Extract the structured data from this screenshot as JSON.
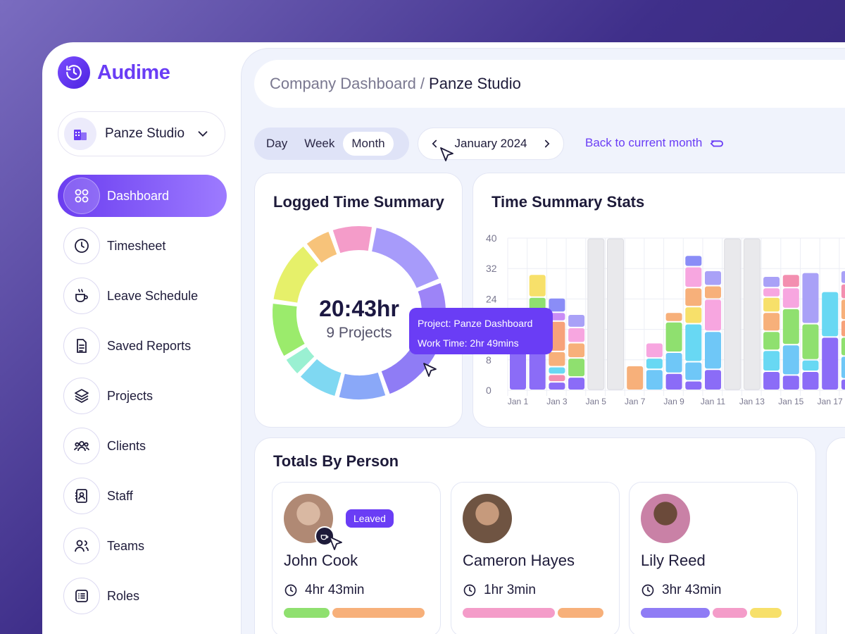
{
  "app": {
    "name": "Audime"
  },
  "org": {
    "name": "Panze Studio"
  },
  "nav": {
    "items": [
      {
        "label": "Dashboard",
        "icon": "grid-icon",
        "active": true
      },
      {
        "label": "Timesheet",
        "icon": "clock-icon"
      },
      {
        "label": "Leave Schedule",
        "icon": "coffee-icon"
      },
      {
        "label": "Saved Reports",
        "icon": "document-icon"
      },
      {
        "label": "Projects",
        "icon": "layers-icon"
      },
      {
        "label": "Clients",
        "icon": "users-icon"
      },
      {
        "label": "Staff",
        "icon": "contact-book-icon"
      },
      {
        "label": "Teams",
        "icon": "team-icon"
      },
      {
        "label": "Roles",
        "icon": "list-icon"
      }
    ]
  },
  "breadcrumb": {
    "parent": "Company Dashboard",
    "separator": "/",
    "current": "Panze Studio"
  },
  "range": {
    "tabs": [
      "Day",
      "Week",
      "Month"
    ],
    "selected": "Month"
  },
  "month_nav": {
    "label": "January 2024"
  },
  "back_link": {
    "label": "Back to current month"
  },
  "logged": {
    "title": "Logged Time Summary",
    "total": "20:43hr",
    "subtitle": "9 Projects",
    "tooltip": {
      "project": "Project: Panze Dashboard",
      "work_time": "Work Time: 2hr 49mins"
    }
  },
  "stats": {
    "title": "Time Summary Stats"
  },
  "chart_data": {
    "type": "bar",
    "stacked": true,
    "title": "Time Summary Stats",
    "y_ticks": [
      0,
      8,
      24,
      32,
      40
    ],
    "ylim": [
      0,
      40
    ],
    "x_labels": [
      "Jan 1",
      "Jan 3",
      "Jan 5",
      "Jan 7",
      "Jan 9",
      "Jan 11",
      "Jan 13",
      "Jan 15",
      "Jan 17"
    ],
    "grid": true,
    "categories": [
      "Jan 1",
      "Jan 2",
      "Jan 3",
      "Jan 4",
      "Jan 5",
      "Jan 6",
      "Jan 7",
      "Jan 8",
      "Jan 9",
      "Jan 10",
      "Jan 11",
      "Jan 12",
      "Jan 13",
      "Jan 14",
      "Jan 15",
      "Jan 16",
      "Jan 17",
      "Jan 18"
    ],
    "bars": [
      {
        "segments": [
          {
            "value": 11,
            "color": "#8b6cf7"
          },
          {
            "value": 6,
            "color": "#64d6f2"
          },
          {
            "value": 4.5,
            "color": "#6fc7f7"
          }
        ]
      },
      {
        "segments": [
          {
            "value": 13.5,
            "color": "#8b6cf7"
          },
          {
            "value": 5.5,
            "color": "#f7a6e0"
          },
          {
            "value": 5.5,
            "color": "#8fe06f"
          },
          {
            "value": 6,
            "color": "#f7e06a"
          }
        ]
      },
      {
        "segments": [
          {
            "value": 2.2,
            "color": "#8b6cf7"
          },
          {
            "value": 2,
            "color": "#f38fb0"
          },
          {
            "value": 2,
            "color": "#68d8f3"
          },
          {
            "value": 4,
            "color": "#f7b07a"
          },
          {
            "value": 8,
            "color": "#f7a27a"
          },
          {
            "value": 2.3,
            "color": "#c98cf6"
          },
          {
            "value": 3.8,
            "color": "#8a8df7"
          }
        ]
      },
      {
        "segments": [
          {
            "value": 3.5,
            "color": "#8b6cf7"
          },
          {
            "value": 5,
            "color": "#8fe06f"
          },
          {
            "value": 4,
            "color": "#f7b07a"
          },
          {
            "value": 4,
            "color": "#f7a6e0"
          },
          {
            "value": 3.5,
            "color": "#a9a1f7"
          }
        ]
      },
      {
        "segments": [
          {
            "value": 40,
            "color": "#e9e9ec",
            "disabled": true
          }
        ]
      },
      {
        "segments": [
          {
            "value": 40,
            "color": "#e9e9ec",
            "disabled": true
          }
        ]
      },
      {
        "segments": [
          {
            "value": 6.5,
            "color": "#f7b07a"
          }
        ]
      },
      {
        "segments": [
          {
            "value": 5.5,
            "color": "#6fc7f7"
          },
          {
            "value": 3,
            "color": "#68d8f3"
          },
          {
            "value": 4,
            "color": "#f7a6e0"
          }
        ]
      },
      {
        "segments": [
          {
            "value": 4.5,
            "color": "#8b6cf7"
          },
          {
            "value": 5.5,
            "color": "#6fc7f7"
          },
          {
            "value": 8,
            "color": "#8fe06f"
          },
          {
            "value": 2.5,
            "color": "#f7b07a"
          }
        ]
      },
      {
        "segments": [
          {
            "value": 2.5,
            "color": "#8b6cf7"
          },
          {
            "value": 5,
            "color": "#6fc7f7"
          },
          {
            "value": 10,
            "color": "#68d8f3"
          },
          {
            "value": 4.5,
            "color": "#f7e06a"
          },
          {
            "value": 5,
            "color": "#f7b07a"
          },
          {
            "value": 5.5,
            "color": "#f7a6e0"
          },
          {
            "value": 3,
            "color": "#8a8df7"
          }
        ]
      },
      {
        "segments": [
          {
            "value": 5.5,
            "color": "#8b6cf7"
          },
          {
            "value": 10,
            "color": "#6fc7f7"
          },
          {
            "value": 8.5,
            "color": "#f7a6e0"
          },
          {
            "value": 3.5,
            "color": "#f7b07a"
          },
          {
            "value": 4,
            "color": "#a9a1f7"
          }
        ]
      },
      {
        "segments": [
          {
            "value": 40,
            "color": "#e9e9ec",
            "disabled": true
          }
        ]
      },
      {
        "segments": [
          {
            "value": 40,
            "color": "#e9e9ec",
            "disabled": true
          }
        ]
      },
      {
        "segments": [
          {
            "value": 5,
            "color": "#8b6cf7"
          },
          {
            "value": 5.5,
            "color": "#68d8f3"
          },
          {
            "value": 5,
            "color": "#8fe06f"
          },
          {
            "value": 5,
            "color": "#f7b07a"
          },
          {
            "value": 4,
            "color": "#f7e06a"
          },
          {
            "value": 2.5,
            "color": "#f7a6e0"
          },
          {
            "value": 3,
            "color": "#a9a1f7"
          }
        ]
      },
      {
        "segments": [
          {
            "value": 4,
            "color": "#8b6cf7"
          },
          {
            "value": 8,
            "color": "#6fc7f7"
          },
          {
            "value": 9.5,
            "color": "#8fe06f"
          },
          {
            "value": 5.5,
            "color": "#f7a6e0"
          },
          {
            "value": 3.5,
            "color": "#f38fb0"
          }
        ]
      },
      {
        "segments": [
          {
            "value": 5,
            "color": "#8b6cf7"
          },
          {
            "value": 3,
            "color": "#68d8f3"
          },
          {
            "value": 9.5,
            "color": "#8fe06f"
          },
          {
            "value": 13.5,
            "color": "#a9a1f7"
          }
        ]
      },
      {
        "segments": [
          {
            "value": 14,
            "color": "#8b6cf7"
          },
          {
            "value": 12,
            "color": "#68d8f3"
          }
        ]
      },
      {
        "segments": [
          {
            "value": 3,
            "color": "#8b6cf7"
          },
          {
            "value": 6,
            "color": "#6fc7f7"
          },
          {
            "value": 5,
            "color": "#8fe06f"
          },
          {
            "value": 4.5,
            "color": "#f7a27a"
          },
          {
            "value": 5.5,
            "color": "#f7b07a"
          },
          {
            "value": 4,
            "color": "#f38fb0"
          },
          {
            "value": 3.5,
            "color": "#a9a1f7"
          }
        ]
      }
    ]
  },
  "donut": {
    "segments": [
      {
        "value": 12,
        "color": "#a79bfa"
      },
      {
        "value": 10,
        "color": "#9d84f7"
      },
      {
        "value": 9,
        "color": "#8f7cf5"
      },
      {
        "value": 7,
        "color": "#8aa8f8"
      },
      {
        "value": 6,
        "color": "#7fd8f2"
      },
      {
        "value": 3,
        "color": "#9af0d2"
      },
      {
        "value": 8,
        "color": "#9beb6c"
      },
      {
        "value": 9,
        "color": "#e6f06a"
      },
      {
        "value": 4,
        "color": "#f7c37a"
      },
      {
        "value": 6,
        "color": "#f49cc9"
      }
    ]
  },
  "people": {
    "title": "Totals By Person",
    "list": [
      {
        "name": "John Cook",
        "time": "4hr 43min",
        "badge": "Leaved",
        "avatar_color": "#b08974",
        "bar": [
          {
            "share": 0.34,
            "color": "#8fe06f"
          },
          {
            "share": 0.66,
            "color": "#f7b07a"
          }
        ]
      },
      {
        "name": "Cameron Hayes",
        "time": "1hr 3min",
        "avatar_color": "#8a6b55",
        "bar": [
          {
            "share": 0.66,
            "color": "#f49cc9"
          },
          {
            "share": 0.34,
            "color": "#f7b07a"
          }
        ]
      },
      {
        "name": "Lily Reed",
        "time": "3hr 43min",
        "avatar_color": "#c981a6",
        "bar": [
          {
            "share": 0.5,
            "color": "#8f7cf5"
          },
          {
            "share": 0.26,
            "color": "#f49cc9"
          },
          {
            "share": 0.24,
            "color": "#f7e06a"
          }
        ]
      }
    ]
  }
}
